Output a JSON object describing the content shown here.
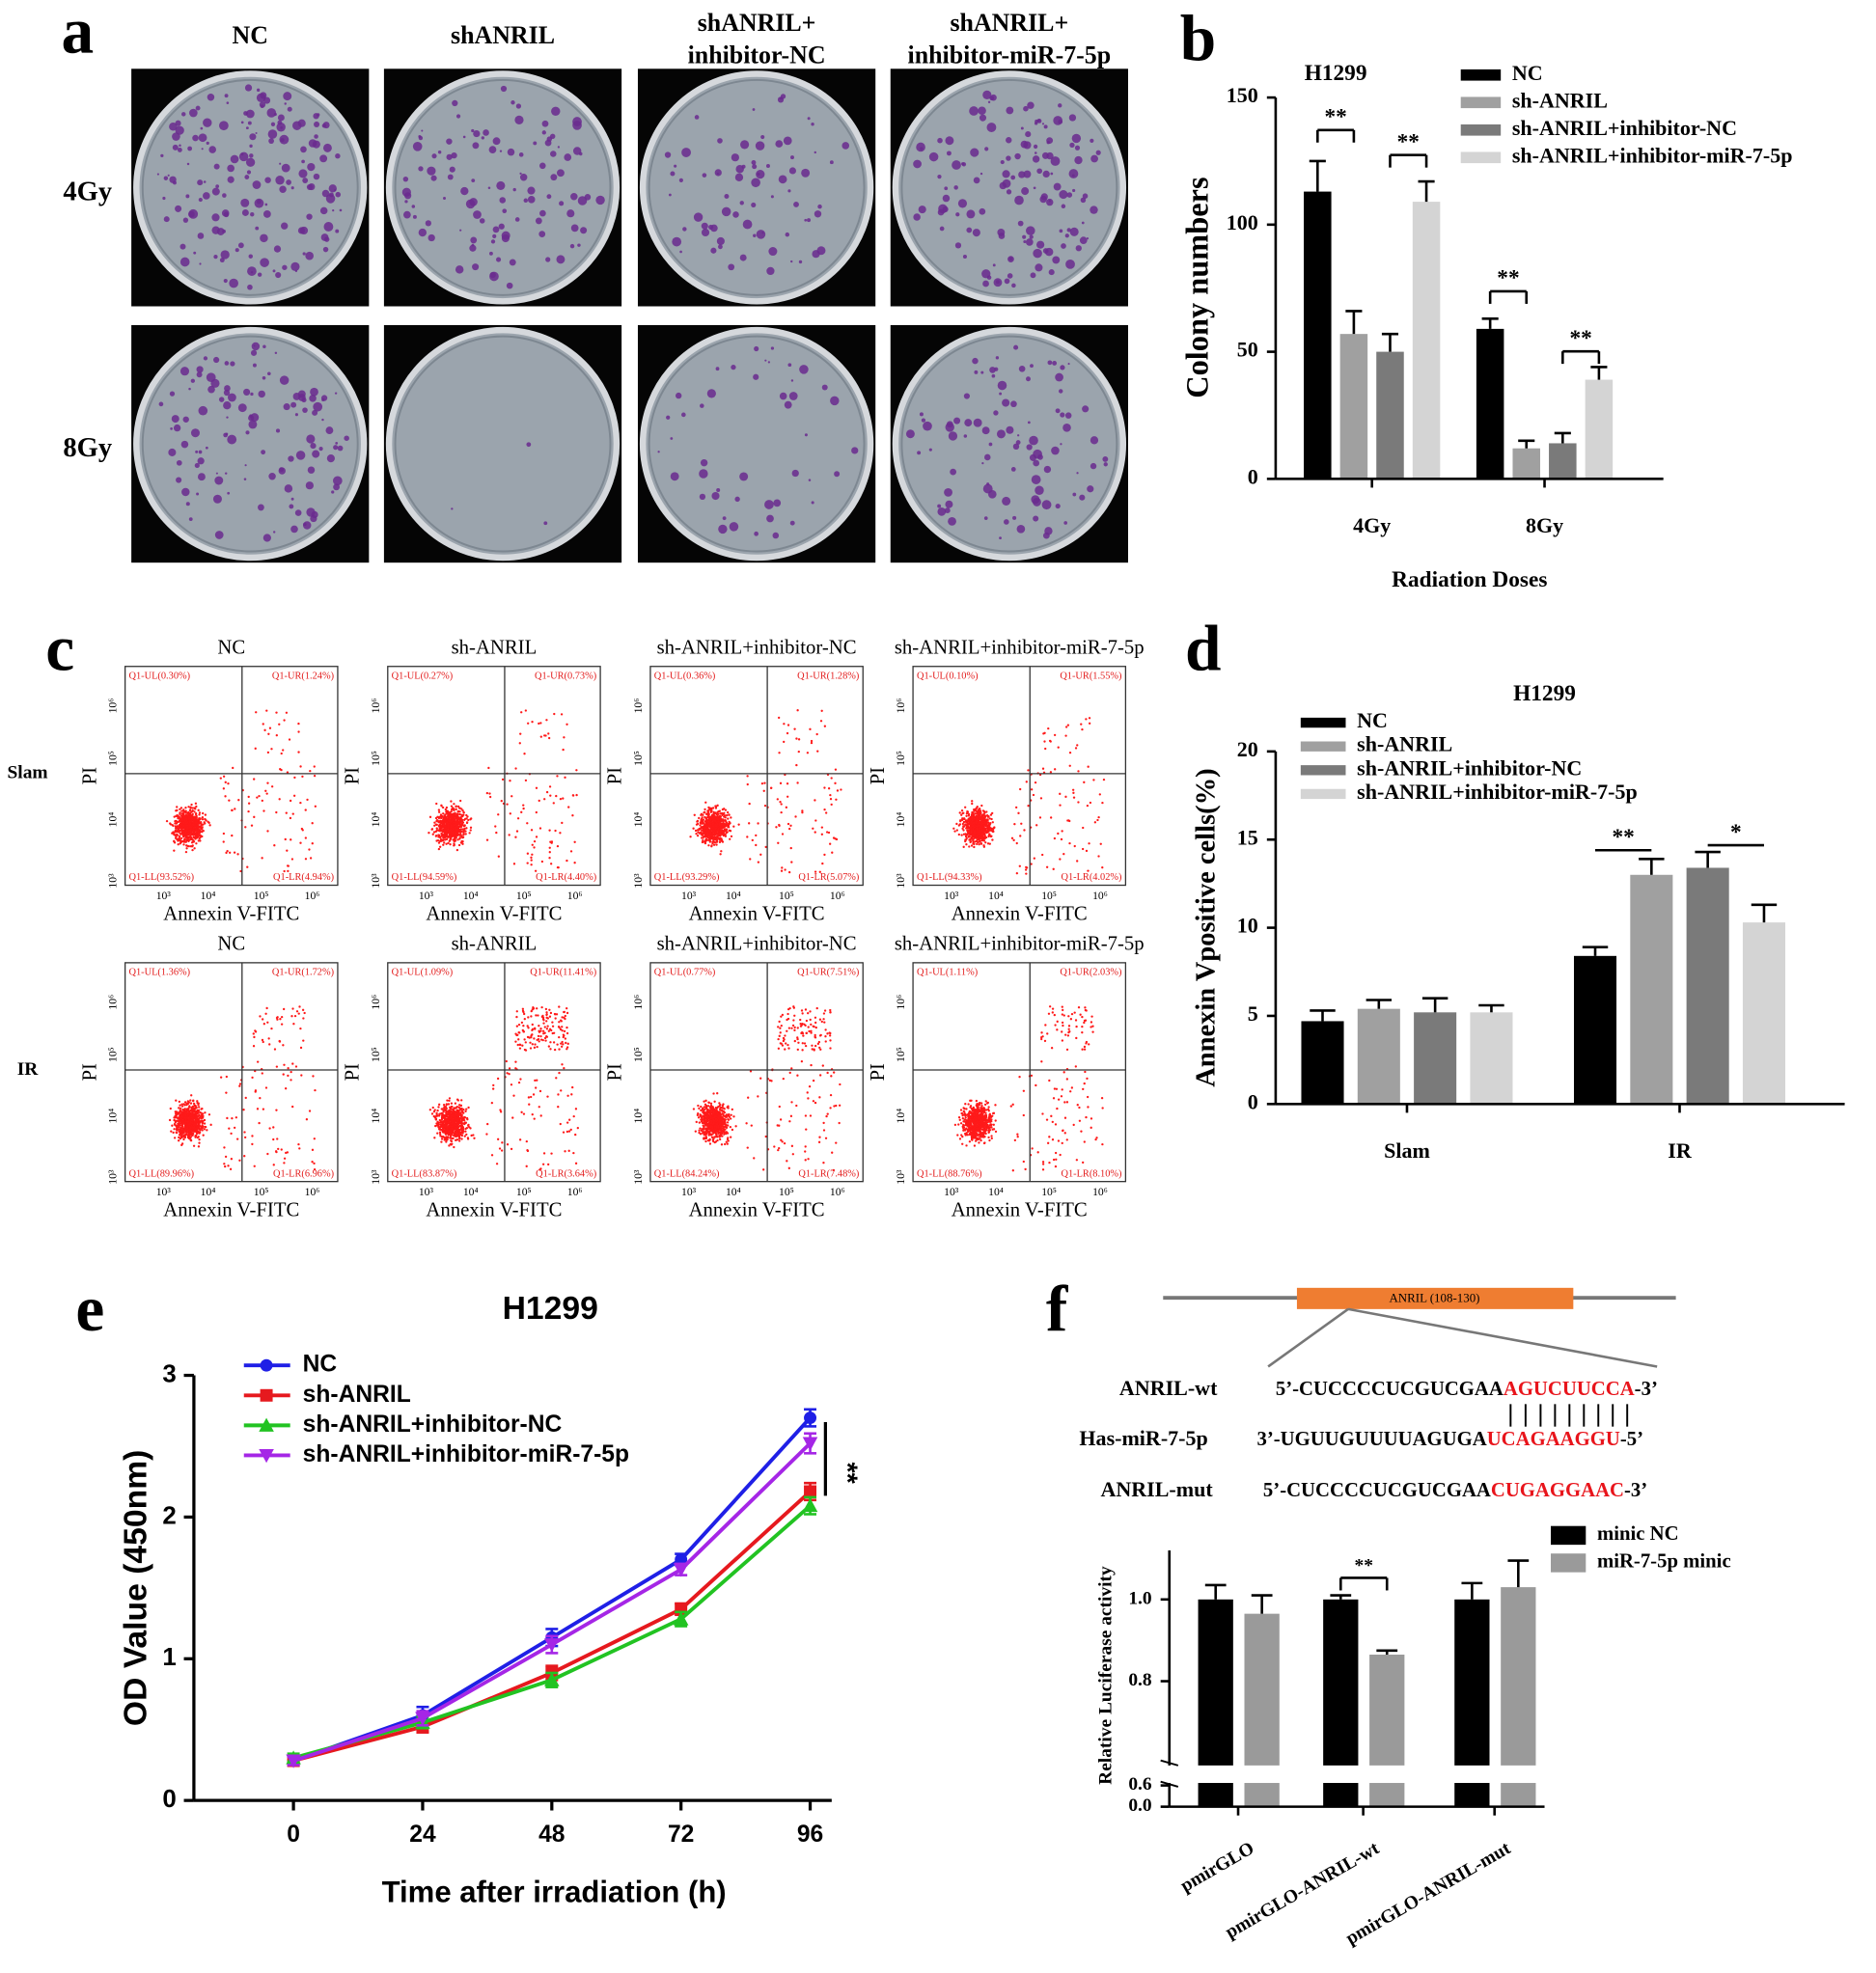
{
  "panel_letters": [
    "a",
    "b",
    "c",
    "d",
    "e",
    "f"
  ],
  "colony_photos": {
    "columns": [
      [
        "NC"
      ],
      [
        "shANRIL"
      ],
      [
        "shANRIL+",
        "inhibitor-NC"
      ],
      [
        "shANRIL+",
        "inhibitor-miR-7-5p"
      ]
    ],
    "rows": [
      "4Gy",
      "8Gy"
    ]
  },
  "flow_cytometry": {
    "rows": [
      "Slam",
      "IR"
    ],
    "x_label": "Annexin V-FITC",
    "y_label": "PI",
    "ticks": [
      "10³",
      "10⁴",
      "10⁵",
      "10⁶"
    ],
    "plots": [
      [
        {
          "title": "NC",
          "UL": "Q1-UL(0.30%)",
          "UR": "Q1-UR(1.24%)",
          "LL": "Q1-LL(93.52%)",
          "LR": "Q1-LR(4.94%)"
        },
        {
          "title": "sh-ANRIL",
          "UL": "Q1-UL(0.27%)",
          "UR": "Q1-UR(0.73%)",
          "LL": "Q1-LL(94.59%)",
          "LR": "Q1-LR(4.40%)"
        },
        {
          "title": "sh-ANRIL+inhibitor-NC",
          "UL": "Q1-UL(0.36%)",
          "UR": "Q1-UR(1.28%)",
          "LL": "Q1-LL(93.29%)",
          "LR": "Q1-LR(5.07%)"
        },
        {
          "title": "sh-ANRIL+inhibitor-miR-7-5p",
          "UL": "Q1-UL(0.10%)",
          "UR": "Q1-UR(1.55%)",
          "LL": "Q1-LL(94.33%)",
          "LR": "Q1-LR(4.02%)"
        }
      ],
      [
        {
          "title": "NC",
          "UL": "Q1-UL(1.36%)",
          "UR": "Q1-UR(1.72%)",
          "LL": "Q1-LL(89.96%)",
          "LR": "Q1-LR(6.96%)"
        },
        {
          "title": "sh-ANRIL",
          "UL": "Q1-UL(1.09%)",
          "UR": "Q1-UR(11.41%)",
          "LL": "Q1-LL(83.87%)",
          "LR": "Q1-LR(3.64%)"
        },
        {
          "title": "sh-ANRIL+inhibitor-NC",
          "UL": "Q1-UL(0.77%)",
          "UR": "Q1-UR(7.51%)",
          "LL": "Q1-LL(84.24%)",
          "LR": "Q1-LR(7.48%)"
        },
        {
          "title": "sh-ANRIL+inhibitor-miR-7-5p",
          "UL": "Q1-UL(1.11%)",
          "UR": "Q1-UR(2.03%)",
          "LL": "Q1-LL(88.76%)",
          "LR": "Q1-LR(8.10%)"
        }
      ]
    ]
  },
  "binding_site": {
    "region": "ANRIL (108-130)",
    "sequences": [
      {
        "name": "ANRIL-wt",
        "prefix": "5’-CUCCCCUCGUCGAA",
        "site": "AGUCUUCCA",
        "suffix": "-3’"
      },
      {
        "name": "Has-miR-7-5p",
        "prefix": "3’-UGUUGUUUUAGUGA",
        "site": "UCAGAAGGU",
        "suffix": "-5’"
      },
      {
        "name": "ANRIL-mut",
        "prefix": "5’-CUCCCCUCGUCGAA",
        "site": "CUGAGGAAC",
        "suffix": "-3’"
      }
    ]
  },
  "chart_data": [
    {
      "type": "bar",
      "title": "H1299",
      "y_label": "Colony numbers",
      "x_label": "Radiation Doses",
      "categories": [
        "4Gy",
        "8Gy"
      ],
      "series": [
        {
          "name": "NC",
          "color": "#000000",
          "values": [
            113,
            59
          ],
          "errors": [
            12,
            4
          ]
        },
        {
          "name": "sh-ANRIL",
          "color": "#a0a0a0",
          "values": [
            57,
            12
          ],
          "errors": [
            9,
            3
          ]
        },
        {
          "name": "sh-ANRIL+inhibitor-NC",
          "color": "#7a7a7a",
          "values": [
            50,
            14
          ],
          "errors": [
            7,
            4
          ]
        },
        {
          "name": "sh-ANRIL+inhibitor-miR-7-5p",
          "color": "#d4d4d4",
          "values": [
            109,
            39
          ],
          "errors": [
            8,
            5
          ]
        }
      ],
      "ylim": [
        0,
        150
      ],
      "yticks": [
        0,
        50,
        100,
        150
      ],
      "annotations": [
        "**",
        "**",
        "**",
        "**"
      ]
    },
    {
      "type": "bar",
      "title": "H1299",
      "y_label": "Annexin Vpositive cells(%)",
      "categories": [
        "Slam",
        "IR"
      ],
      "series": [
        {
          "name": "NC",
          "color": "#000000",
          "values": [
            4.7,
            8.4
          ],
          "errors": [
            0.6,
            0.5
          ]
        },
        {
          "name": "sh-ANRIL",
          "color": "#a0a0a0",
          "values": [
            5.4,
            13.0
          ],
          "errors": [
            0.5,
            0.9
          ]
        },
        {
          "name": "sh-ANRIL+inhibitor-NC",
          "color": "#7a7a7a",
          "values": [
            5.2,
            13.4
          ],
          "errors": [
            0.8,
            0.9
          ]
        },
        {
          "name": "sh-ANRIL+inhibitor-miR-7-5p",
          "color": "#d4d4d4",
          "values": [
            5.2,
            10.3
          ],
          "errors": [
            0.4,
            1.0
          ]
        }
      ],
      "ylim": [
        0,
        20
      ],
      "yticks": [
        0,
        5,
        10,
        15,
        20
      ],
      "annotations": [
        "**",
        "*"
      ]
    },
    {
      "type": "line",
      "title": "H1299",
      "y_label": "OD Value (450nm)",
      "x_label": "Time after irradiation (h)",
      "x": [
        0,
        24,
        48,
        72,
        96
      ],
      "series": [
        {
          "name": "NC",
          "color": "#1f1fe6",
          "marker": "circle",
          "values": [
            0.28,
            0.6,
            1.15,
            1.7,
            2.7
          ],
          "errors": [
            0.03,
            0.06,
            0.06,
            0.04,
            0.06
          ]
        },
        {
          "name": "sh-ANRIL",
          "color": "#e6191e",
          "marker": "square",
          "values": [
            0.28,
            0.52,
            0.9,
            1.35,
            2.18
          ],
          "errors": [
            0.03,
            0.04,
            0.05,
            0.04,
            0.06
          ]
        },
        {
          "name": "sh-ANRIL+inhibitor-NC",
          "color": "#22c322",
          "marker": "triangle-up",
          "values": [
            0.3,
            0.55,
            0.85,
            1.28,
            2.08
          ],
          "errors": [
            0.03,
            0.04,
            0.05,
            0.05,
            0.06
          ]
        },
        {
          "name": "sh-ANRIL+inhibitor-miR-7-5p",
          "color": "#a526e6",
          "marker": "triangle-down",
          "values": [
            0.28,
            0.58,
            1.1,
            1.63,
            2.52
          ],
          "errors": [
            0.03,
            0.05,
            0.06,
            0.04,
            0.07
          ]
        }
      ],
      "xlim": [
        -18.5,
        100
      ],
      "xticks": [
        0,
        24,
        48,
        72,
        96
      ],
      "ylim": [
        0,
        3
      ],
      "yticks": [
        0,
        1,
        2,
        3
      ],
      "annotations": [
        "**"
      ]
    },
    {
      "type": "bar",
      "y_label": "Relative Luciferase activity",
      "categories": [
        "pmirGLO",
        "pmirGLO-ANRIL-wt",
        "pmirGLO-ANRIL-mut"
      ],
      "series": [
        {
          "name": "minic NC",
          "color": "#000000",
          "values": [
            1.0,
            1.0,
            1.0
          ],
          "errors": [
            0.035,
            0.01,
            0.04
          ]
        },
        {
          "name": "miR-7-5p minic",
          "color": "#9a9a9a",
          "values": [
            0.965,
            0.865,
            1.03
          ],
          "errors": [
            0.045,
            0.01,
            0.065
          ]
        }
      ],
      "ylim": [
        0,
        1.12
      ],
      "axis_break": 0.6,
      "yticks": [
        {
          "value": 0,
          "label": "0.0"
        },
        {
          "value": 0.6,
          "label": "0.6"
        },
        {
          "value": 0.8,
          "label": "0.8"
        },
        {
          "value": 1,
          "label": "1.0"
        }
      ],
      "annotations": [
        "**"
      ]
    }
  ]
}
